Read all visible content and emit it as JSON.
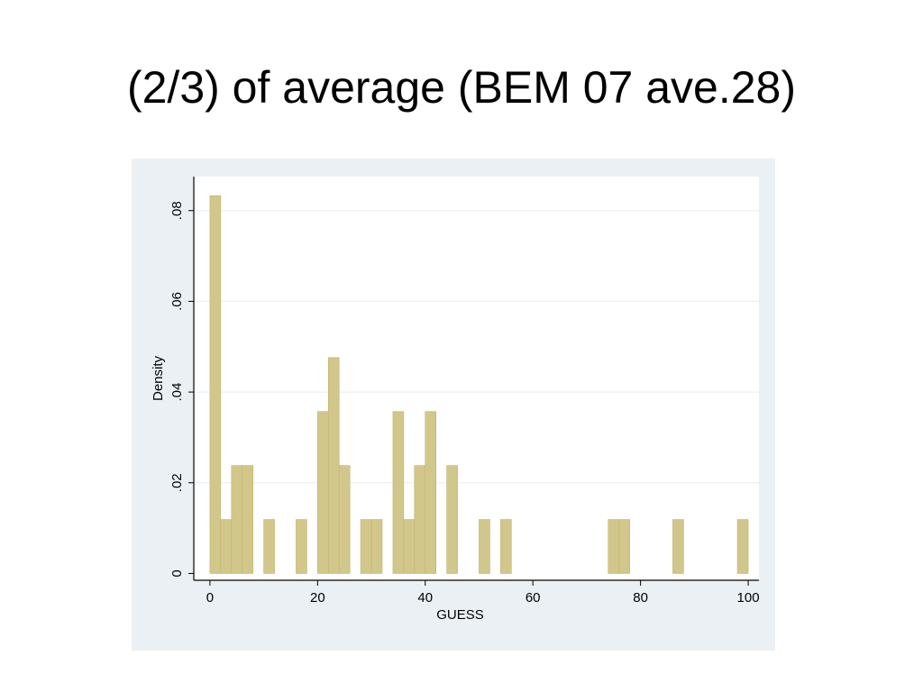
{
  "slide": {
    "title": "(2/3) of average (BEM 07 ave.28)"
  },
  "colors": {
    "outer_background": "#eaf0f3",
    "plot_background": "#ffffff",
    "bar_fill": "#d2c78a",
    "bar_stroke": "#c0b26c",
    "grid": "#e8eef2",
    "axis": "#000000"
  },
  "chart_data": {
    "type": "bar",
    "subtype": "histogram",
    "title": "",
    "xlabel": "GUESS",
    "ylabel": "Density",
    "xlim": [
      -3,
      102
    ],
    "ylim": [
      -0.0015,
      0.0875
    ],
    "bin_width": 2,
    "x_ticks": [
      0,
      20,
      40,
      60,
      80,
      100
    ],
    "x_tick_labels": [
      "0",
      "20",
      "40",
      "60",
      "80",
      "100"
    ],
    "y_ticks": [
      0,
      0.02,
      0.04,
      0.06,
      0.08
    ],
    "y_tick_labels": [
      "0",
      ".02",
      ".04",
      ".06",
      ".08"
    ],
    "grid": "horizontal",
    "legend": "none",
    "bins": [
      {
        "x0": 0,
        "x1": 2,
        "density": 0.0833
      },
      {
        "x0": 2,
        "x1": 4,
        "density": 0.0119
      },
      {
        "x0": 4,
        "x1": 6,
        "density": 0.0238
      },
      {
        "x0": 6,
        "x1": 8,
        "density": 0.0238
      },
      {
        "x0": 10,
        "x1": 12,
        "density": 0.0119
      },
      {
        "x0": 16,
        "x1": 18,
        "density": 0.0119
      },
      {
        "x0": 20,
        "x1": 22,
        "density": 0.0357
      },
      {
        "x0": 22,
        "x1": 24,
        "density": 0.0476
      },
      {
        "x0": 24,
        "x1": 26,
        "density": 0.0238
      },
      {
        "x0": 28,
        "x1": 30,
        "density": 0.0119
      },
      {
        "x0": 30,
        "x1": 32,
        "density": 0.0119
      },
      {
        "x0": 34,
        "x1": 36,
        "density": 0.0357
      },
      {
        "x0": 36,
        "x1": 38,
        "density": 0.0119
      },
      {
        "x0": 38,
        "x1": 40,
        "density": 0.0238
      },
      {
        "x0": 40,
        "x1": 42,
        "density": 0.0357
      },
      {
        "x0": 44,
        "x1": 46,
        "density": 0.0238
      },
      {
        "x0": 50,
        "x1": 52,
        "density": 0.0119
      },
      {
        "x0": 54,
        "x1": 56,
        "density": 0.0119
      },
      {
        "x0": 74,
        "x1": 76,
        "density": 0.0119
      },
      {
        "x0": 76,
        "x1": 78,
        "density": 0.0119
      },
      {
        "x0": 86,
        "x1": 88,
        "density": 0.0119
      },
      {
        "x0": 98,
        "x1": 100,
        "density": 0.0119
      }
    ]
  }
}
